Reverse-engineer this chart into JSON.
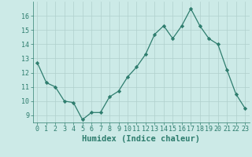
{
  "x": [
    0,
    1,
    2,
    3,
    4,
    5,
    6,
    7,
    8,
    9,
    10,
    11,
    12,
    13,
    14,
    15,
    16,
    17,
    18,
    19,
    20,
    21,
    22,
    23
  ],
  "y": [
    12.7,
    11.3,
    11.0,
    10.0,
    9.9,
    8.7,
    9.2,
    9.2,
    10.3,
    10.7,
    11.7,
    12.4,
    13.3,
    14.7,
    15.3,
    14.4,
    15.3,
    16.5,
    15.3,
    14.4,
    14.0,
    12.2,
    10.5,
    9.5
  ],
  "xlabel": "Humidex (Indice chaleur)",
  "ylim": [
    8.5,
    17.0
  ],
  "xlim": [
    -0.5,
    23.5
  ],
  "bg_color": "#cceae7",
  "line_color": "#2e7d6e",
  "grid_color": "#b0d0cc",
  "yticks": [
    9,
    10,
    11,
    12,
    13,
    14,
    15,
    16
  ],
  "xticks": [
    0,
    1,
    2,
    3,
    4,
    5,
    6,
    7,
    8,
    9,
    10,
    11,
    12,
    13,
    14,
    15,
    16,
    17,
    18,
    19,
    20,
    21,
    22,
    23
  ],
  "tick_fontsize": 6,
  "xlabel_fontsize": 7.5
}
